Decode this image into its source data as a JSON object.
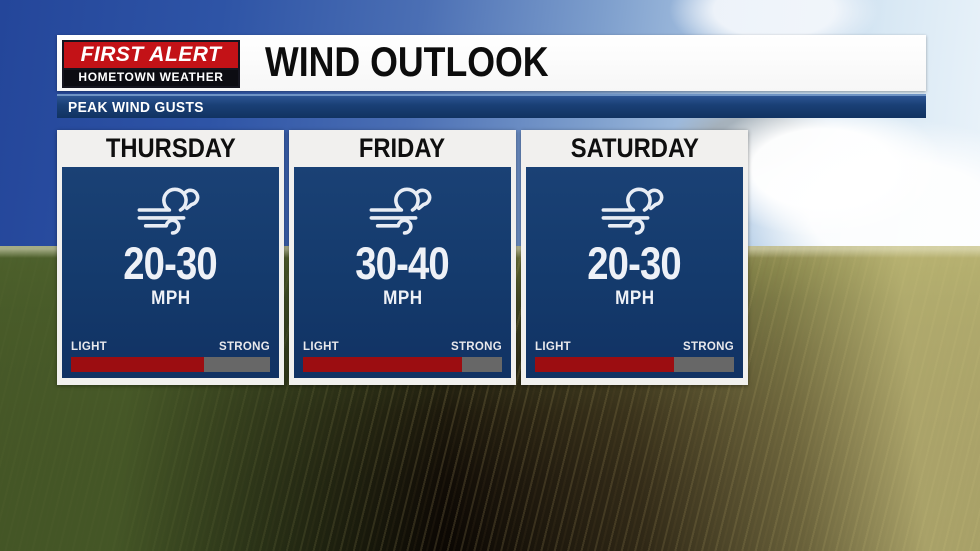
{
  "brand": {
    "line1": "FIRST ALERT",
    "line2": "HOMETOWN WEATHER"
  },
  "header": {
    "title": "WIND OUTLOOK",
    "subtitle": "PEAK WIND GUSTS"
  },
  "gauge_labels": {
    "left": "LIGHT",
    "right": "STRONG"
  },
  "days": [
    {
      "name": "THURSDAY",
      "range": "20-30",
      "unit": "MPH",
      "gauge_width": "67%"
    },
    {
      "name": "FRIDAY",
      "range": "30-40",
      "unit": "MPH",
      "gauge_width": "80%"
    },
    {
      "name": "SATURDAY",
      "range": "20-30",
      "unit": "MPH",
      "gauge_width": "70%"
    }
  ],
  "colors": {
    "brand_red": "#c31217",
    "panel_navy": "#13386a",
    "subbar_navy": "#1a4076",
    "gauge_track_gray": "#676767",
    "gauge_fill_red": "#9c0d11"
  },
  "chart_data": {
    "type": "table",
    "title": "WIND OUTLOOK",
    "subtitle": "PEAK WIND GUSTS",
    "categories": [
      "THURSDAY",
      "FRIDAY",
      "SATURDAY"
    ],
    "series": [
      {
        "name": "peak_wind_gust_range_mph",
        "values": [
          "20-30",
          "30-40",
          "20-30"
        ]
      },
      {
        "name": "gauge_fill_percent_light_to_strong",
        "values": [
          67,
          80,
          70
        ]
      }
    ],
    "gauge_scale": [
      "LIGHT",
      "STRONG"
    ],
    "legend_position": "none",
    "grid": false
  }
}
